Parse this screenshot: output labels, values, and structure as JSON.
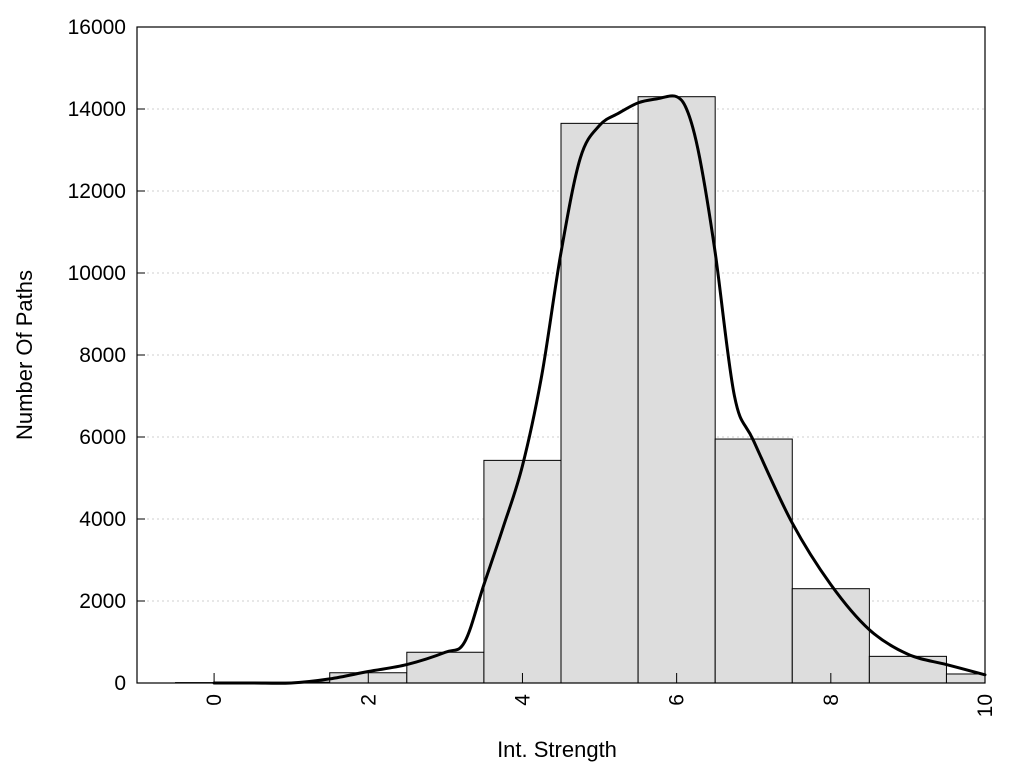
{
  "chart_data": {
    "type": "bar",
    "xlabel": "Int. Strength",
    "ylabel": "Number Of Paths",
    "xlim": [
      -1,
      10
    ],
    "ylim": [
      0,
      16000
    ],
    "x_ticks": [
      0,
      2,
      4,
      6,
      8,
      10
    ],
    "y_ticks": [
      0,
      2000,
      4000,
      6000,
      8000,
      10000,
      12000,
      14000,
      16000
    ],
    "grid": "horizontal dotted",
    "bar_width": 1,
    "bars": {
      "x": [
        0,
        1,
        2,
        3,
        4,
        5,
        6,
        7,
        8,
        9,
        10
      ],
      "values": [
        10,
        20,
        250,
        750,
        5430,
        13650,
        14300,
        5950,
        2300,
        650,
        220
      ]
    },
    "curve": {
      "x": [
        0,
        0.5,
        1,
        1.5,
        2,
        2.5,
        3,
        3.25,
        3.5,
        3.75,
        4,
        4.25,
        4.5,
        4.75,
        5,
        5.25,
        5.5,
        5.75,
        6,
        6.15,
        6.3,
        6.5,
        6.75,
        7,
        7.5,
        8,
        8.5,
        9,
        9.5,
        10
      ],
      "values": [
        0,
        0,
        0,
        100,
        280,
        450,
        750,
        1000,
        2400,
        3800,
        5300,
        7500,
        10500,
        12800,
        13600,
        13900,
        14150,
        14250,
        14300,
        13900,
        12800,
        10500,
        7000,
        5900,
        3900,
        2400,
        1300,
        700,
        450,
        200
      ]
    }
  }
}
